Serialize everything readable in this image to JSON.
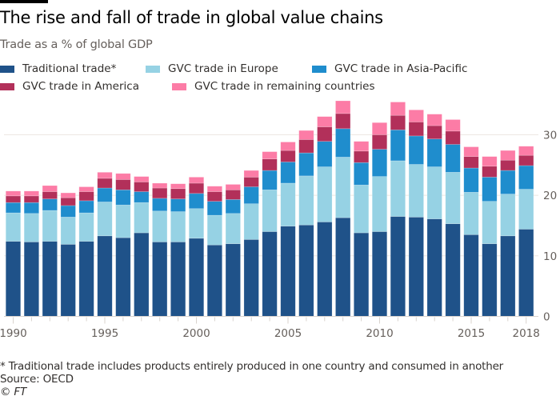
{
  "header": {
    "title": "The rise and fall of trade in global value chains",
    "subtitle": "Trade as a % of global GDP"
  },
  "legend": [
    {
      "label": "Traditional trade*",
      "color": "#1f5289"
    },
    {
      "label": "GVC trade in Europe",
      "color": "#96d2e4"
    },
    {
      "label": "GVC trade in Asia-Pacific",
      "color": "#1f8dcd"
    },
    {
      "label": "GVC trade in America",
      "color": "#b2305a"
    },
    {
      "label": "GVC trade in remaining countries",
      "color": "#fc7ca6"
    }
  ],
  "footer": {
    "note": "* Traditional trade includes products entirely produced in one country and consumed in another",
    "source": "Source: OECD",
    "copyright": "© FT"
  },
  "chart_data": {
    "type": "bar",
    "stacked": true,
    "title": "The rise and fall of trade in global value chains",
    "subtitle": "Trade as a % of global GDP",
    "xlabel": "",
    "ylabel": "",
    "ylim": [
      0,
      35.6
    ],
    "yticks": [
      0,
      10,
      20,
      30
    ],
    "y_axis_side": "right",
    "grid": true,
    "legend_placement": "top",
    "xtick_labels": [
      "1990",
      "1995",
      "2000",
      "2005",
      "2010",
      "2015",
      "2018"
    ],
    "categories": [
      "1990",
      "1991",
      "1992",
      "1993",
      "1994",
      "1995",
      "1996",
      "1997",
      "1998",
      "1999",
      "2000",
      "2001",
      "2002",
      "2003",
      "2004",
      "2005",
      "2006",
      "2007",
      "2008",
      "2009",
      "2010",
      "2011",
      "2012",
      "2013",
      "2014",
      "2015",
      "2016",
      "2017",
      "2018"
    ],
    "series": [
      {
        "name": "Traditional trade*",
        "color": "#1f5289",
        "values": [
          12.4,
          12.3,
          12.4,
          11.9,
          12.4,
          13.3,
          13.0,
          13.8,
          12.3,
          12.3,
          12.9,
          11.8,
          12.0,
          12.7,
          14.0,
          14.9,
          15.1,
          15.6,
          16.3,
          13.8,
          14.0,
          16.5,
          16.4,
          16.1,
          15.3,
          13.5,
          12.0,
          13.3,
          14.4
        ]
      },
      {
        "name": "GVC trade in Europe",
        "color": "#96d2e4",
        "values": [
          4.7,
          4.7,
          5.1,
          4.5,
          4.7,
          5.6,
          5.4,
          5.0,
          5.1,
          5.0,
          4.9,
          4.9,
          5.0,
          5.9,
          6.9,
          7.1,
          8.1,
          9.1,
          10.0,
          7.9,
          9.1,
          9.2,
          8.7,
          8.6,
          8.5,
          7.0,
          7.0,
          6.9,
          6.6
        ]
      },
      {
        "name": "GVC trade in Asia-Pacific",
        "color": "#1f8dcd",
        "values": [
          1.7,
          1.8,
          1.9,
          1.9,
          2.0,
          2.3,
          2.5,
          1.8,
          2.1,
          2.1,
          2.5,
          2.3,
          2.3,
          2.8,
          3.2,
          3.5,
          3.8,
          4.2,
          4.7,
          3.7,
          4.5,
          5.1,
          4.7,
          4.6,
          4.6,
          4.0,
          4.0,
          3.9,
          3.9
        ]
      },
      {
        "name": "GVC trade in America",
        "color": "#b2305a",
        "values": [
          1.1,
          1.1,
          1.2,
          1.3,
          1.5,
          1.6,
          1.7,
          1.6,
          1.7,
          1.7,
          1.7,
          1.6,
          1.6,
          1.6,
          1.9,
          1.9,
          2.2,
          2.4,
          2.5,
          1.9,
          2.4,
          2.4,
          2.3,
          2.2,
          2.2,
          1.9,
          1.8,
          1.7,
          1.7
        ]
      },
      {
        "name": "GVC trade in remaining countries",
        "color": "#fc7ca6",
        "values": [
          0.8,
          0.8,
          1.0,
          0.8,
          0.8,
          1.0,
          1.0,
          0.9,
          0.8,
          0.8,
          1.0,
          0.9,
          0.9,
          1.1,
          1.2,
          1.4,
          1.5,
          1.7,
          2.1,
          1.6,
          2.0,
          2.2,
          2.0,
          1.9,
          1.9,
          1.6,
          1.6,
          1.6,
          1.5
        ]
      }
    ]
  }
}
